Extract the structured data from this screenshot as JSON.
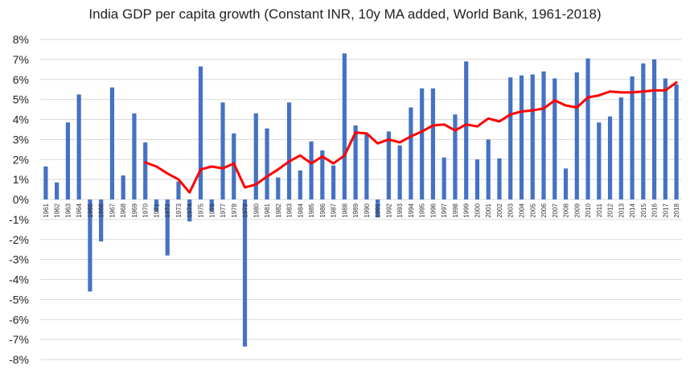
{
  "chart_data": {
    "type": "bar",
    "title": "India GDP per capita growth (Constant INR, 10y MA added, World Bank, 1961-2018)",
    "xlabel": "",
    "ylabel": "",
    "ylim": [
      -8,
      8
    ],
    "y_ticks": [
      "-8%",
      "-7%",
      "-6%",
      "-5%",
      "-4%",
      "-3%",
      "-2%",
      "-1%",
      "0%",
      "1%",
      "2%",
      "3%",
      "4%",
      "5%",
      "6%",
      "7%",
      "8%"
    ],
    "y_tick_values": [
      -8,
      -7,
      -6,
      -5,
      -4,
      -3,
      -2,
      -1,
      0,
      1,
      2,
      3,
      4,
      5,
      6,
      7,
      8
    ],
    "grid": true,
    "legend": "none",
    "categories": [
      "1961",
      "1962",
      "1963",
      "1964",
      "1965",
      "1966",
      "1967",
      "1968",
      "1969",
      "1970",
      "1971",
      "1972",
      "1973",
      "1974",
      "1975",
      "1976",
      "1977",
      "1978",
      "1979",
      "1980",
      "1981",
      "1982",
      "1983",
      "1984",
      "1985",
      "1986",
      "1987",
      "1988",
      "1989",
      "1990",
      "1991",
      "1992",
      "1993",
      "1994",
      "1995",
      "1996",
      "1997",
      "1998",
      "1999",
      "2000",
      "2001",
      "2002",
      "2003",
      "2004",
      "2005",
      "2006",
      "2007",
      "2008",
      "2009",
      "2010",
      "2011",
      "2012",
      "2013",
      "2014",
      "2015",
      "2016",
      "2017",
      "2018"
    ],
    "series": [
      {
        "type": "bar",
        "color": "#4472c4",
        "values": [
          1.65,
          0.85,
          3.85,
          5.25,
          -4.6,
          -2.1,
          5.6,
          1.2,
          4.3,
          2.85,
          -0.6,
          -2.8,
          0.9,
          -1.1,
          6.65,
          -0.6,
          4.85,
          3.3,
          -7.35,
          4.3,
          3.55,
          1.1,
          4.85,
          1.45,
          2.9,
          2.45,
          1.7,
          7.3,
          3.7,
          3.25,
          -0.9,
          3.4,
          2.7,
          4.6,
          5.55,
          5.55,
          2.1,
          4.25,
          6.9,
          2.0,
          3.0,
          2.05,
          6.1,
          6.2,
          6.25,
          6.4,
          6.05,
          1.55,
          6.35,
          7.05,
          3.85,
          4.15,
          5.1,
          6.15,
          6.8,
          7.0,
          6.05,
          5.75
        ]
      },
      {
        "type": "line",
        "color": "#ff0000",
        "values": [
          null,
          null,
          null,
          null,
          null,
          null,
          null,
          null,
          null,
          1.85,
          1.65,
          1.3,
          1.0,
          0.35,
          1.5,
          1.65,
          1.55,
          1.8,
          0.6,
          0.75,
          1.15,
          1.5,
          1.9,
          2.2,
          1.8,
          2.15,
          1.8,
          2.2,
          3.35,
          3.3,
          2.8,
          3.0,
          2.85,
          3.15,
          3.4,
          3.7,
          3.75,
          3.45,
          3.75,
          3.65,
          4.05,
          3.9,
          4.25,
          4.4,
          4.45,
          4.55,
          4.95,
          4.7,
          4.6,
          5.1,
          5.2,
          5.4,
          5.35,
          5.35,
          5.4,
          5.45,
          5.45,
          5.85
        ]
      }
    ]
  }
}
